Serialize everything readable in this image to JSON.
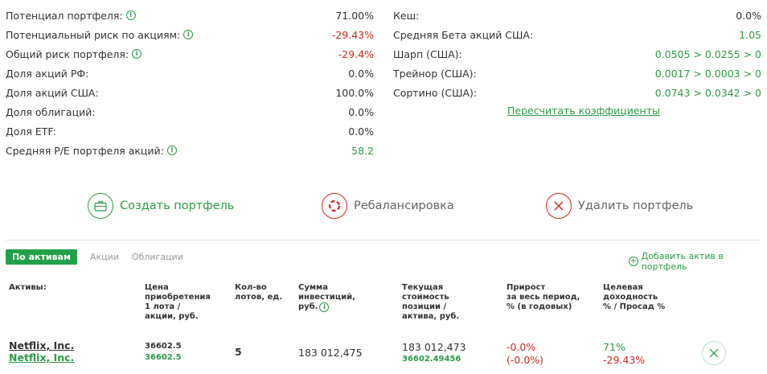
{
  "stats_left": [
    {
      "label": "Потенциал портфеля:",
      "value": "71.00%",
      "info": true,
      "color": "default"
    },
    {
      "label": "Потенциальный риск по акциям:",
      "value": "-29.43%",
      "info": true,
      "color": "red"
    },
    {
      "label": "Общий риск портфеля:",
      "value": "-29.4%",
      "info": true,
      "color": "red"
    },
    {
      "label": "Доля акций РФ:",
      "value": "0.0%",
      "info": false,
      "color": "default"
    },
    {
      "label": "Доля акций США:",
      "value": "100.0%",
      "info": false,
      "color": "default"
    },
    {
      "label": "Доля облигаций:",
      "value": "0.0%",
      "info": false,
      "color": "default"
    },
    {
      "label": "Доля ETF:",
      "value": "0.0%",
      "info": false,
      "color": "default"
    },
    {
      "label": "Средняя P/E портфеля акций:",
      "value": "58.2",
      "info": true,
      "color": "green"
    }
  ],
  "stats_right": [
    {
      "label": "Кеш:",
      "value": "0.0%",
      "color": "default"
    },
    {
      "label": "Средняя Бета акций США:",
      "value": "1.05",
      "color": "green"
    },
    {
      "label": "Шарп (США):",
      "value": "0.0505 > 0.0255 > 0",
      "color": "green"
    },
    {
      "label": "Трейнор (США):",
      "value": "0.0017 > 0.0003 > 0",
      "color": "green"
    },
    {
      "label": "Сортино (США):",
      "value": "0.0743 > 0.0342 > 0",
      "color": "green"
    }
  ],
  "info_glyph": "i",
  "recalc_label": "Пересчитать коэффициенты",
  "actions": {
    "create": "Создать портфель",
    "rebalance": "Ребалансировка",
    "delete": "Удалить портфель"
  },
  "tabs": [
    {
      "label": "По активам",
      "active": true
    },
    {
      "label": "Акции",
      "active": false
    },
    {
      "label": "Облигации",
      "active": false
    }
  ],
  "add_asset": {
    "plus": "+",
    "label": "Добавить актив в портфель"
  },
  "table": {
    "headers": {
      "assets": "Активы:",
      "price": "Цена\nприобретения\n1 лота /\nакции, руб.",
      "lots": "Кол-во\nлотов, ед.",
      "invest": "Сумма\nинвестиций,\nруб.",
      "current": "Текущая\nстоимость\nпозиции /\nактива, руб.",
      "growth": "Прирост\nза весь период,\n% (в годовых)",
      "target": "Целевая\nдоходность\n% / Просад %"
    },
    "rows": [
      {
        "name": "Netflix, Inc.",
        "name2": "Netflix, Inc.",
        "price": "36602.5",
        "price2": "36602.5",
        "lots": "5",
        "invest": "183 012,475",
        "current": "183 012,473",
        "current2": "36602.49456",
        "growth": "-0.0%",
        "growth2": "(-0.0%)",
        "target": "71%",
        "drawdown": "-29.43%"
      }
    ]
  },
  "colors": {
    "green": "#2d9a47",
    "red": "#d0281f",
    "tab_active": "#24a148"
  }
}
